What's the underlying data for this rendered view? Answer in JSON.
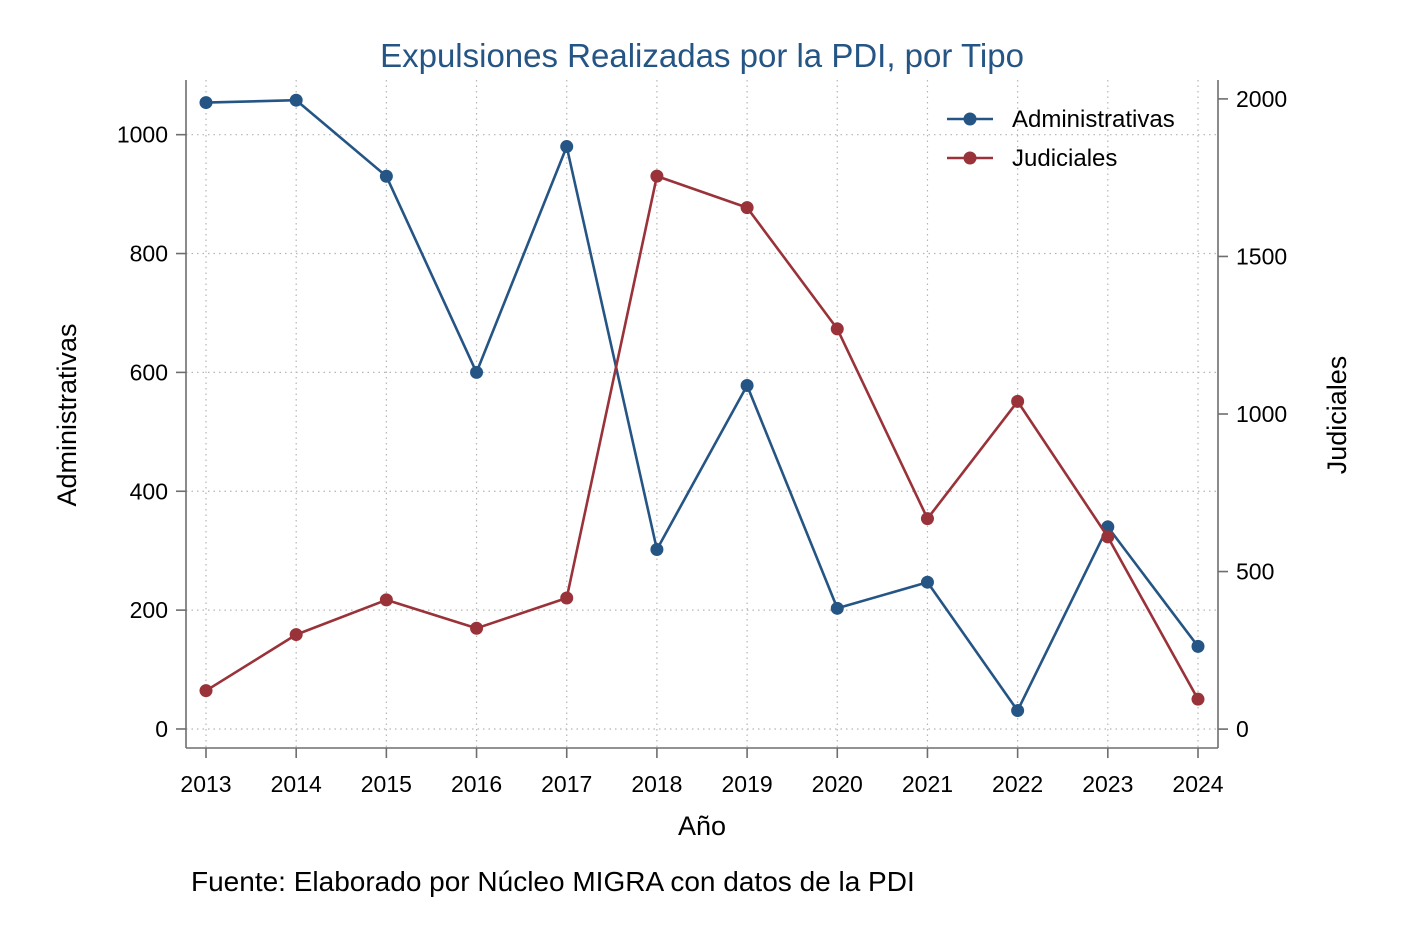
{
  "chart_data": {
    "type": "line",
    "title": "Expulsiones Realizadas por la PDI, por Tipo",
    "xlabel": "Año",
    "ylabel_left": "Administrativas",
    "ylabel_right": "Judiciales",
    "note": "Fuente: Elaborado por Núcleo MIGRA con datos de la PDI",
    "x": [
      2013,
      2014,
      2015,
      2016,
      2017,
      2018,
      2019,
      2020,
      2021,
      2022,
      2023,
      2024
    ],
    "x_tick_labels": [
      "2013",
      "2014",
      "2015",
      "2016",
      "2017",
      "2018",
      "2019",
      "2020",
      "2021",
      "2022",
      "2023",
      "2024"
    ],
    "y_left_ticks": [
      0,
      200,
      400,
      600,
      800,
      1000
    ],
    "y_left_tick_labels": [
      "0",
      "200",
      "400",
      "600",
      "800",
      "1000"
    ],
    "y_left_range": [
      -32,
      1092
    ],
    "y_right_ticks": [
      0,
      500,
      1000,
      1500,
      2000
    ],
    "y_right_tick_labels": [
      "0",
      "500",
      "1000",
      "1500",
      "2000"
    ],
    "y_right_range": [
      -60,
      2060
    ],
    "grid": true,
    "legend_position": "top-right",
    "series": [
      {
        "name": "Administrativas",
        "axis": "left",
        "color": "#255585",
        "values": [
          1054,
          1058,
          930,
          600,
          980,
          302,
          578,
          203,
          247,
          31,
          340,
          139
        ]
      },
      {
        "name": "Judiciales",
        "axis": "right",
        "color": "#993239",
        "values": [
          122,
          300,
          410,
          320,
          416,
          1755,
          1655,
          1270,
          668,
          1040,
          610,
          95
        ]
      }
    ]
  }
}
